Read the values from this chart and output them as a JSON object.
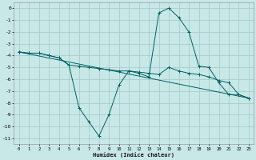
{
  "xlabel": "Humidex (Indice chaleur)",
  "bg_color": "#c8e8e8",
  "grid_color": "#a8cccc",
  "line_color": "#006060",
  "xlim": [
    -0.5,
    23.5
  ],
  "ylim": [
    -11.5,
    0.5
  ],
  "xticks": [
    0,
    1,
    2,
    3,
    4,
    5,
    6,
    7,
    8,
    9,
    10,
    11,
    12,
    13,
    14,
    15,
    16,
    17,
    18,
    19,
    20,
    21,
    22,
    23
  ],
  "yticks": [
    0,
    -1,
    -2,
    -3,
    -4,
    -5,
    -6,
    -7,
    -8,
    -9,
    -10,
    -11
  ],
  "line1_x": [
    0,
    1,
    2,
    3,
    4,
    5,
    6,
    7,
    8,
    9,
    10,
    11,
    12,
    13,
    14,
    15,
    16,
    17,
    18,
    19,
    20,
    21,
    22,
    23
  ],
  "line1_y": [
    -3.7,
    -3.8,
    -3.8,
    -4.0,
    -4.2,
    -4.8,
    -8.4,
    -9.6,
    -10.8,
    -9.0,
    -6.5,
    -5.3,
    -5.5,
    -5.8,
    -0.4,
    0.0,
    -0.8,
    -2.0,
    -4.9,
    -5.0,
    -6.3,
    -7.3,
    -7.3,
    -7.6
  ],
  "line2_x": [
    0,
    1,
    2,
    3,
    4,
    5,
    6,
    7,
    8,
    9,
    10,
    11,
    12,
    13,
    14,
    15,
    16,
    17,
    18,
    19,
    20,
    21,
    22,
    23
  ],
  "line2_y": [
    -3.7,
    -3.8,
    -3.8,
    -4.0,
    -4.2,
    -4.8,
    -4.9,
    -5.0,
    -5.1,
    -5.2,
    -5.3,
    -5.3,
    -5.4,
    -5.5,
    -5.6,
    -5.0,
    -5.3,
    -5.5,
    -5.6,
    -5.8,
    -6.1,
    -6.3,
    -7.3,
    -7.6
  ],
  "line3_x": [
    0,
    23
  ],
  "line3_y": [
    -3.7,
    -7.6
  ]
}
